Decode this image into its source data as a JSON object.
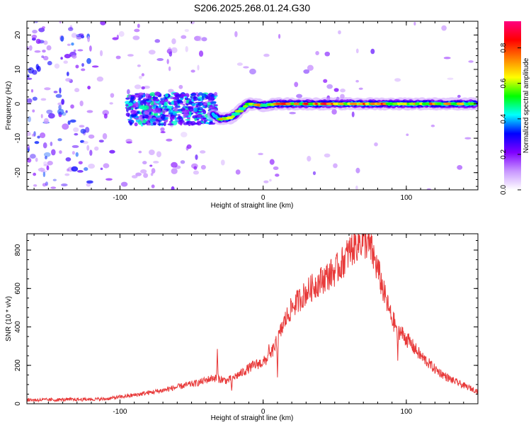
{
  "title": "S206.2025.268.01.24.G30",
  "chart_data": [
    {
      "type": "heatmap",
      "name": "spectrogram",
      "xlabel": "Height of straight line (km)",
      "ylabel": "Frequency (Hz)",
      "xlim": [
        -165,
        150
      ],
      "ylim": [
        -25,
        24
      ],
      "xticks": [
        -100,
        0,
        100
      ],
      "xtick_labels": [
        "-100",
        "0",
        "100"
      ],
      "yticks": [
        -20,
        -10,
        0,
        10,
        20
      ],
      "ytick_labels": [
        "-20",
        "-10",
        "0",
        "10",
        "20"
      ],
      "colorbar": {
        "label": "Normalized spectral amplitude",
        "range": [
          0,
          0.95
        ],
        "ticks": [
          0.0,
          0.2,
          0.4,
          0.6,
          0.8
        ],
        "tick_labels": [
          "0.0",
          "0.2",
          "0.4",
          "0.6",
          "0.8"
        ],
        "colormap": [
          "#ffffff",
          "#c896ff",
          "#8000ff",
          "#0000ff",
          "#00ffff",
          "#00ff00",
          "#ffff00",
          "#ff8000",
          "#ff0000",
          "#ff0080"
        ]
      },
      "ridge": {
        "description_points": [
          [
            -35,
            -3
          ],
          [
            -30,
            -4.5
          ],
          [
            -22,
            -4
          ],
          [
            -15,
            -1.5
          ],
          [
            -10,
            0
          ],
          [
            0,
            -0.5
          ],
          [
            10,
            0
          ],
          [
            150,
            0
          ]
        ],
        "peak_amplitude_points": [
          [
            -25,
            0.75
          ],
          [
            -10,
            0.7
          ],
          [
            10,
            0.85
          ],
          [
            20,
            0.85
          ],
          [
            40,
            0.9
          ],
          [
            55,
            0.9
          ],
          [
            70,
            0.95
          ],
          [
            85,
            0.9
          ],
          [
            100,
            0.85
          ],
          [
            120,
            0.8
          ],
          [
            140,
            0.75
          ]
        ]
      }
    },
    {
      "type": "line",
      "name": "snr",
      "xlabel": "Height of straight line (km)",
      "ylabel": "SNR (10 * v/v)",
      "xlim": [
        -165,
        150
      ],
      "ylim": [
        0,
        885
      ],
      "xticks": [
        -100,
        0,
        100
      ],
      "xtick_labels": [
        "-100",
        "0",
        "100"
      ],
      "yticks": [
        0,
        200,
        400,
        600,
        800
      ],
      "ytick_labels": [
        "0",
        "200",
        "400",
        "600",
        "800"
      ],
      "color": "#e83a3a",
      "series": [
        {
          "name": "SNR",
          "x": [
            -165,
            -150,
            -130,
            -110,
            -90,
            -70,
            -55,
            -45,
            -35,
            -25,
            -20,
            -15,
            -10,
            -5,
            0,
            5,
            10,
            15,
            20,
            30,
            40,
            50,
            55,
            60,
            65,
            68,
            72,
            75,
            80,
            85,
            90,
            95,
            100,
            110,
            120,
            130,
            140,
            150
          ],
          "values": [
            20,
            20,
            22,
            25,
            45,
            70,
            95,
            110,
            135,
            120,
            140,
            160,
            185,
            205,
            215,
            250,
            330,
            430,
            500,
            580,
            640,
            690,
            730,
            790,
            830,
            850,
            845,
            810,
            700,
            560,
            440,
            380,
            340,
            250,
            180,
            130,
            95,
            65
          ]
        }
      ],
      "spikes": [
        [
          -32,
          290
        ],
        [
          -22,
          60
        ],
        [
          4,
          320
        ],
        [
          10,
          100
        ],
        [
          94,
          220
        ]
      ]
    }
  ]
}
